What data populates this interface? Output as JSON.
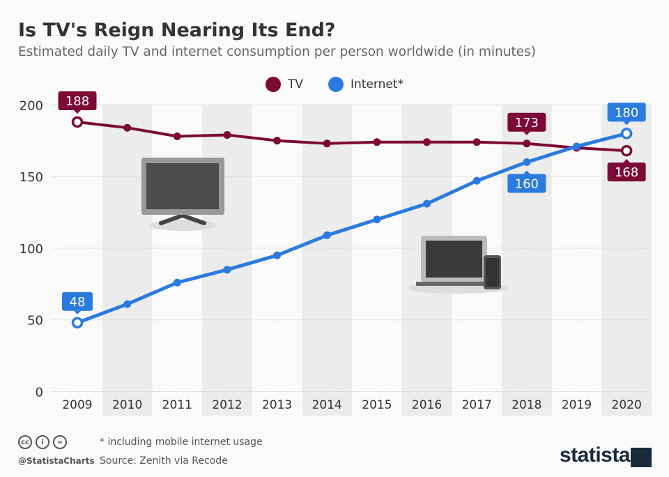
{
  "title": "Is TV's Reign Nearing Its End?",
  "subtitle": "Estimated daily TV and internet consumption per person worldwide (in minutes)",
  "footer": {
    "note": "* including mobile internet usage",
    "source": "Source: Zenith via Recode",
    "handle": "@StatistaCharts",
    "logo": "statista",
    "cc_icons": [
      "cc-icon",
      "by-icon",
      "nd-icon"
    ]
  },
  "chart_data": {
    "type": "line",
    "title": "Is TV's Reign Nearing Its End?",
    "x": [
      "2009",
      "2010",
      "2011",
      "2012",
      "2013",
      "2014",
      "2015",
      "2016",
      "2017",
      "2018",
      "2019",
      "2020"
    ],
    "ylim": [
      0,
      200
    ],
    "yticks": [
      0,
      50,
      100,
      150,
      200
    ],
    "grid": true,
    "legend_position": "top-center",
    "series": [
      {
        "name": "TV",
        "color": "#7b0a34",
        "values": [
          188,
          184,
          178,
          179,
          175,
          173,
          174,
          174,
          174,
          173,
          170,
          168
        ],
        "labels": {
          "0": "188",
          "9": "173",
          "11": "168"
        }
      },
      {
        "name": "Internet*",
        "color": "#2b7bde",
        "values": [
          48,
          61,
          76,
          85,
          95,
          109,
          120,
          131,
          147,
          160,
          171,
          180
        ],
        "labels": {
          "0": "48",
          "9": "160",
          "11": "180"
        }
      }
    ]
  }
}
